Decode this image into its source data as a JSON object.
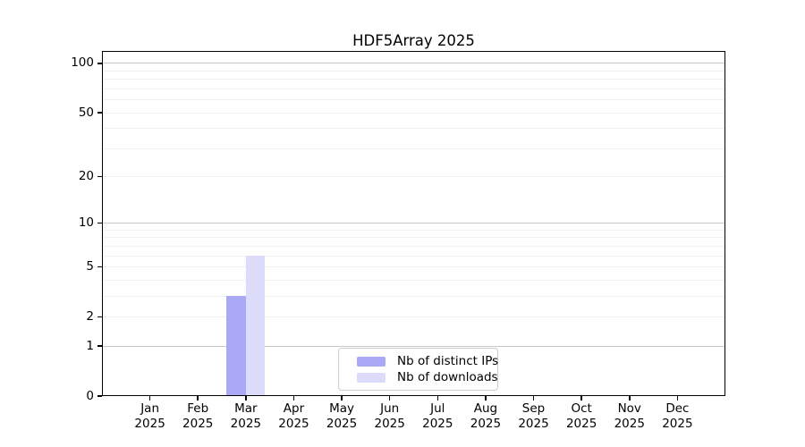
{
  "title": "HDF5Array 2025",
  "chart_data": {
    "type": "bar",
    "title": "HDF5Array 2025",
    "xlabel": "",
    "ylabel": "",
    "categories": [
      "Jan 2025",
      "Feb 2025",
      "Mar 2025",
      "Apr 2025",
      "May 2025",
      "Jun 2025",
      "Jul 2025",
      "Aug 2025",
      "Sep 2025",
      "Oct 2025",
      "Nov 2025",
      "Dec 2025"
    ],
    "series": [
      {
        "name": "Nb of distinct IPs",
        "color": "#A9A9F5",
        "values": [
          0,
          0,
          3,
          0,
          0,
          0,
          0,
          0,
          0,
          0,
          0,
          0
        ]
      },
      {
        "name": "Nb of downloads",
        "color": "#DCDCFA",
        "values": [
          0,
          0,
          6,
          0,
          0,
          0,
          0,
          0,
          0,
          0,
          0,
          0
        ]
      }
    ],
    "yscale": "log10(1+x)",
    "ylim": [
      0,
      118
    ],
    "yticks": [
      0,
      1,
      2,
      5,
      10,
      20,
      50,
      100
    ],
    "minor_gridlines": [
      2,
      3,
      4,
      5,
      6,
      7,
      8,
      9,
      20,
      30,
      40,
      50,
      60,
      70,
      80,
      90
    ],
    "major_gridlines": [
      1,
      10,
      100
    ],
    "grid": true,
    "legend_position": "inside-bottom-center"
  },
  "legend": {
    "items": [
      {
        "label": "Nb of distinct IPs",
        "color": "#A9A9F5"
      },
      {
        "label": "Nb of downloads",
        "color": "#DCDCFA"
      }
    ]
  }
}
